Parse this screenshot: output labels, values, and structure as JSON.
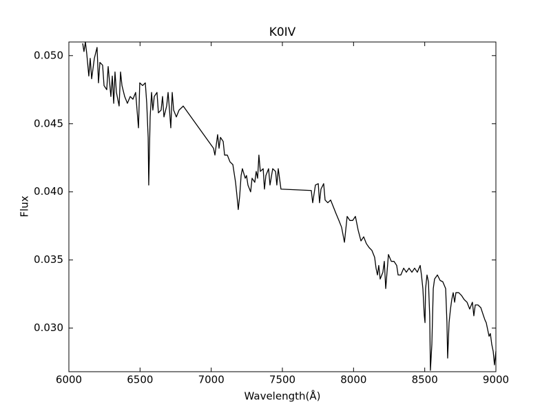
{
  "chart_data": {
    "type": "line",
    "title": "K0IV",
    "x_label": "Wavelength(Å)",
    "y_label": "Flux",
    "color": "#000000",
    "x": [
      6097,
      6106,
      6116,
      6126,
      6140,
      6150,
      6160,
      6179,
      6198,
      6208,
      6218,
      6237,
      6247,
      6266,
      6276,
      6295,
      6305,
      6315,
      6324,
      6334,
      6353,
      6363,
      6373,
      6392,
      6411,
      6431,
      6450,
      6469,
      6489,
      6498,
      6518,
      6537,
      6547,
      6557,
      6561,
      6571,
      6581,
      6590,
      6600,
      6619,
      6629,
      6648,
      6658,
      6668,
      6687,
      6697,
      6707,
      6716,
      6726,
      6736,
      6755,
      6774,
      6794,
      6803,
      7016,
      7026,
      7045,
      7055,
      7065,
      7084,
      7094,
      7113,
      7132,
      7152,
      7171,
      7181,
      7190,
      7200,
      7210,
      7219,
      7239,
      7248,
      7258,
      7277,
      7287,
      7306,
      7316,
      7326,
      7335,
      7345,
      7365,
      7374,
      7384,
      7403,
      7413,
      7432,
      7452,
      7461,
      7471,
      7490,
      7703,
      7713,
      7732,
      7752,
      7761,
      7771,
      7790,
      7800,
      7819,
      7839,
      7858,
      7877,
      7897,
      7916,
      7936,
      7955,
      7974,
      7994,
      8013,
      8032,
      8052,
      8071,
      8090,
      8110,
      8129,
      8148,
      8158,
      8168,
      8177,
      8187,
      8206,
      8216,
      8226,
      8245,
      8265,
      8284,
      8303,
      8313,
      8332,
      8352,
      8371,
      8390,
      8410,
      8429,
      8448,
      8468,
      8477,
      8487,
      8497,
      8502,
      8506,
      8516,
      8526,
      8535,
      8540,
      8550,
      8560,
      8569,
      8589,
      8608,
      8627,
      8647,
      8656,
      8661,
      8671,
      8681,
      8690,
      8700,
      8710,
      8719,
      8739,
      8758,
      8777,
      8797,
      8816,
      8835,
      8845,
      8855,
      8874,
      8894,
      8913,
      8923,
      8932,
      8942,
      8952,
      8961,
      8971,
      8981,
      8990,
      9000
    ],
    "values": [
      0.0509,
      0.0503,
      0.051,
      0.0501,
      0.0485,
      0.0498,
      0.0483,
      0.0498,
      0.0506,
      0.048,
      0.0495,
      0.0493,
      0.0478,
      0.0475,
      0.0492,
      0.047,
      0.0485,
      0.0465,
      0.0488,
      0.0473,
      0.0463,
      0.0488,
      0.0478,
      0.047,
      0.0465,
      0.047,
      0.0468,
      0.0473,
      0.0447,
      0.048,
      0.0478,
      0.048,
      0.0465,
      0.044,
      0.0405,
      0.0455,
      0.0473,
      0.046,
      0.047,
      0.0473,
      0.0458,
      0.046,
      0.047,
      0.0455,
      0.0463,
      0.0473,
      0.046,
      0.0447,
      0.0473,
      0.046,
      0.0455,
      0.046,
      0.0462,
      0.0463,
      0.0432,
      0.0427,
      0.0442,
      0.0432,
      0.044,
      0.0437,
      0.0427,
      0.0427,
      0.0422,
      0.042,
      0.0407,
      0.0397,
      0.0387,
      0.0397,
      0.0412,
      0.0417,
      0.041,
      0.0412,
      0.0405,
      0.04,
      0.041,
      0.0407,
      0.0415,
      0.041,
      0.0427,
      0.0415,
      0.0417,
      0.0402,
      0.0412,
      0.0417,
      0.0405,
      0.0417,
      0.0415,
      0.0405,
      0.0417,
      0.0402,
      0.0401,
      0.0392,
      0.0405,
      0.0406,
      0.0392,
      0.0402,
      0.0406,
      0.0394,
      0.0392,
      0.0394,
      0.0389,
      0.0384,
      0.0379,
      0.0374,
      0.0363,
      0.0382,
      0.0379,
      0.0379,
      0.0382,
      0.0372,
      0.0364,
      0.0367,
      0.0362,
      0.0359,
      0.0357,
      0.0352,
      0.0344,
      0.0339,
      0.0346,
      0.0336,
      0.0341,
      0.0349,
      0.0329,
      0.0354,
      0.0349,
      0.0349,
      0.0346,
      0.0339,
      0.0339,
      0.0344,
      0.0341,
      0.0344,
      0.0341,
      0.0344,
      0.0341,
      0.0346,
      0.0339,
      0.0329,
      0.0309,
      0.0304,
      0.0329,
      0.0339,
      0.0334,
      0.0309,
      0.0269,
      0.0288,
      0.0329,
      0.0336,
      0.0339,
      0.0335,
      0.0334,
      0.0329,
      0.0304,
      0.0278,
      0.0304,
      0.0314,
      0.0321,
      0.0326,
      0.0319,
      0.0326,
      0.0326,
      0.0324,
      0.0321,
      0.0319,
      0.0314,
      0.0319,
      0.0309,
      0.0317,
      0.0317,
      0.0315,
      0.0309,
      0.0306,
      0.0304,
      0.0299,
      0.0294,
      0.0296,
      0.0288,
      0.0283,
      0.0273,
      0.0283
    ],
    "xlim": [
      6000,
      9000
    ],
    "ylim": [
      0.0268,
      0.051
    ],
    "xticks": [
      6000,
      6500,
      7000,
      7500,
      8000,
      8500,
      9000
    ],
    "yticks": [
      {
        "value": 0.03,
        "label": "0.030"
      },
      {
        "value": 0.035,
        "label": "0.035"
      },
      {
        "value": 0.04,
        "label": "0.040"
      },
      {
        "value": 0.045,
        "label": "0.045"
      },
      {
        "value": 0.05,
        "label": "0.050"
      }
    ],
    "grid": false
  }
}
